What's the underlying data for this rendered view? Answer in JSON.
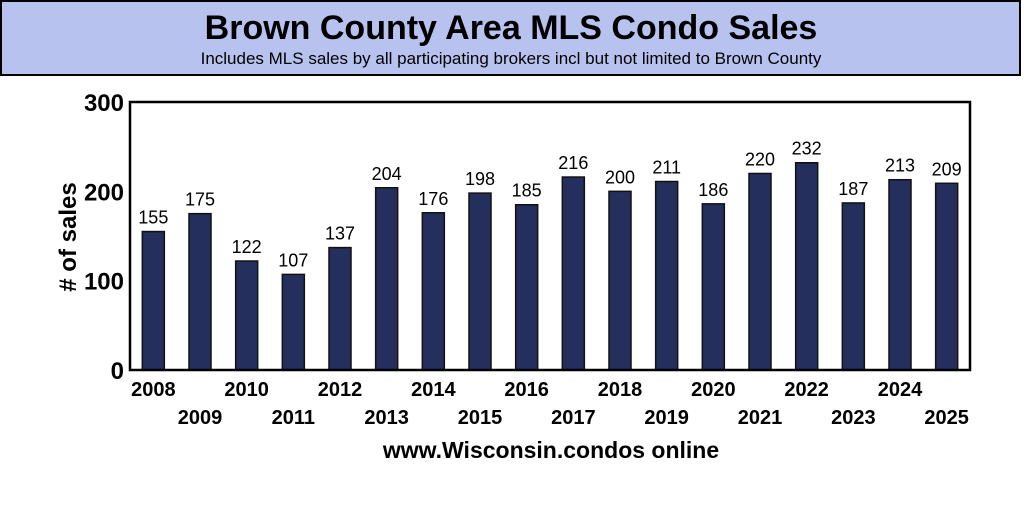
{
  "chart_data": {
    "type": "bar",
    "title": "Brown County Area MLS Condo Sales",
    "subtitle": "Includes MLS sales by all participating brokers incl but not limited to Brown County",
    "xlabel": "www.Wisconsin.condos online",
    "ylabel": "# of sales",
    "ylim": [
      0,
      300
    ],
    "yticks": [
      "0",
      "100",
      "200",
      "300"
    ],
    "grid": false,
    "categories": [
      "2008",
      "2009",
      "2010",
      "2011",
      "2012",
      "2013",
      "2014",
      "2015",
      "2016",
      "2017",
      "2018",
      "2019",
      "2020",
      "2021",
      "2022",
      "2023",
      "2024",
      "2025"
    ],
    "values": [
      155,
      175,
      122,
      107,
      137,
      204,
      176,
      198,
      185,
      216,
      200,
      211,
      186,
      220,
      232,
      187,
      213,
      209
    ],
    "colors": {
      "bar": "#252f5e",
      "title_box": "#b8c2ee"
    }
  }
}
